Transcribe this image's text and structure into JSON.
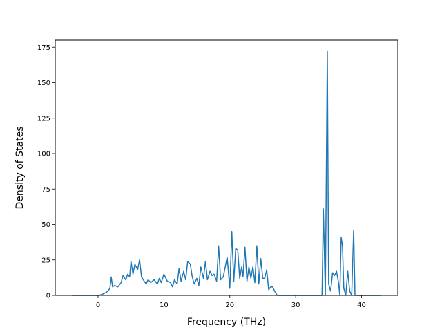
{
  "chart_data": {
    "type": "line",
    "title": "",
    "xlabel": "Frequency (THz)",
    "ylabel": "Density of States",
    "xlim": [
      -6.5,
      45.5
    ],
    "ylim": [
      0,
      180
    ],
    "xticks": [
      0,
      10,
      20,
      30,
      40
    ],
    "yticks": [
      0,
      25,
      50,
      75,
      100,
      125,
      150,
      175
    ],
    "line_color": "#1f77b4",
    "grid": false,
    "series": [
      {
        "x": [
          -4.0,
          -1.0,
          0.0,
          0.5,
          1.0,
          1.5,
          1.8,
          2.0,
          2.2,
          2.5,
          3.0,
          3.5,
          3.8,
          4.2,
          4.5,
          4.8,
          5.0,
          5.3,
          5.6,
          6.0,
          6.3,
          6.6,
          7.0,
          7.3,
          7.6,
          8.0,
          8.5,
          9.0,
          9.3,
          9.6,
          10.0,
          10.5,
          11.0,
          11.3,
          11.6,
          12.0,
          12.3,
          12.6,
          13.0,
          13.3,
          13.6,
          14.0,
          14.3,
          14.6,
          15.0,
          15.3,
          15.6,
          16.0,
          16.3,
          16.6,
          17.0,
          17.3,
          17.6,
          18.0,
          18.3,
          18.6,
          19.0,
          19.3,
          19.6,
          20.0,
          20.3,
          20.6,
          20.9,
          21.2,
          21.5,
          21.8,
          22.0,
          22.3,
          22.6,
          22.9,
          23.2,
          23.5,
          23.8,
          24.1,
          24.4,
          24.7,
          25.0,
          25.3,
          25.6,
          25.9,
          26.2,
          26.5,
          26.8,
          27.2,
          27.5,
          28.0,
          33.5,
          33.8,
          34.0,
          34.2,
          34.5,
          34.8,
          35.0,
          35.3,
          35.6,
          35.9,
          36.2,
          36.5,
          36.7,
          36.9,
          37.1,
          37.3,
          37.6,
          37.9,
          38.2,
          38.5,
          38.8,
          39.0,
          39.3,
          39.6,
          43.0
        ],
        "y": [
          0,
          0,
          0,
          0.5,
          1.5,
          3,
          5,
          13,
          6,
          7,
          6,
          9,
          14,
          11,
          15,
          13,
          24,
          15,
          22,
          18,
          25,
          13,
          10,
          8,
          11,
          9,
          11,
          8,
          12,
          9,
          15,
          10,
          9,
          6,
          11,
          8,
          19,
          10,
          17,
          11,
          24,
          22,
          13,
          8,
          12,
          7,
          20,
          12,
          24,
          11,
          17,
          14,
          15,
          10,
          35,
          11,
          13,
          20,
          27,
          5,
          45,
          10,
          33,
          32,
          12,
          20,
          13,
          34,
          10,
          20,
          12,
          20,
          9,
          35,
          8,
          26,
          12,
          12,
          18,
          4,
          6,
          6,
          3,
          0,
          0,
          0,
          0,
          0,
          0,
          61,
          0,
          172,
          8,
          3,
          16,
          14,
          17,
          9,
          0,
          41,
          35,
          5,
          0,
          17,
          3,
          0,
          46,
          0,
          0,
          0,
          0
        ]
      }
    ]
  }
}
